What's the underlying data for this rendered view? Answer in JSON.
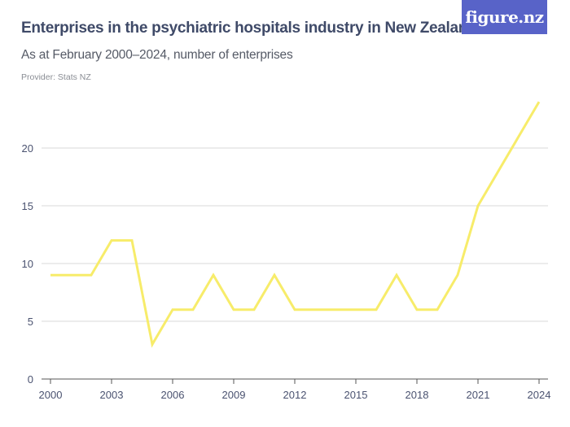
{
  "header": {
    "title": "Enterprises in the psychiatric hospitals industry in New Zealand",
    "subtitle": "As at February 2000–2024, number of enterprises",
    "provider": "Provider: Stats NZ",
    "logo": "figure.nz"
  },
  "colors": {
    "line": "#f7ec6a",
    "grid": "#d9d9d9",
    "axis": "#555555",
    "logo_bg": "#5863c8",
    "title": "#3f4a68"
  },
  "chart_data": {
    "type": "line",
    "title": "Enterprises in the psychiatric hospitals industry in New Zealand",
    "subtitle": "As at February 2000–2024, number of enterprises",
    "xlabel": "",
    "ylabel": "",
    "x": [
      2000,
      2001,
      2002,
      2003,
      2004,
      2005,
      2006,
      2007,
      2008,
      2009,
      2010,
      2011,
      2012,
      2013,
      2014,
      2015,
      2016,
      2017,
      2018,
      2019,
      2020,
      2021,
      2022,
      2023,
      2024
    ],
    "series": [
      {
        "name": "Enterprises",
        "values": [
          9,
          9,
          9,
          12,
          12,
          3,
          6,
          6,
          9,
          6,
          6,
          9,
          6,
          6,
          6,
          6,
          6,
          9,
          6,
          6,
          9,
          15,
          18,
          21,
          24
        ]
      }
    ],
    "xticks": [
      "2000",
      "2003",
      "2006",
      "2009",
      "2012",
      "2015",
      "2018",
      "2021",
      "2024"
    ],
    "yticks": [
      "0",
      "5",
      "10",
      "15",
      "20"
    ],
    "ylim": [
      0,
      24
    ],
    "xlim": [
      2000,
      2024
    ],
    "grid": true,
    "legend": "none"
  }
}
